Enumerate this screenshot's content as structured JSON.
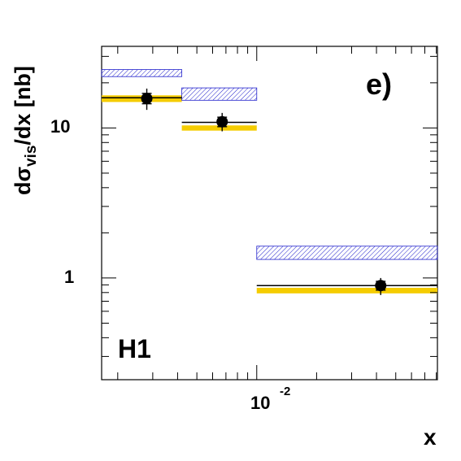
{
  "chart_data": {
    "type": "scatter",
    "title": "",
    "xlabel": "x",
    "ylabel": "dσ_vis/dx [nb]",
    "ylabel_parts": {
      "prefix": "dσ",
      "subscript": "vis",
      "suffix": "/dx [nb]"
    },
    "xscale": "log",
    "yscale": "log",
    "xlim": [
      0.00166,
      0.081
    ],
    "ylim": [
      0.21,
      35
    ],
    "x_tick_label": {
      "base": "10",
      "exponent": "-2",
      "value": 0.01
    },
    "y_tick_labels": [
      {
        "label": "1",
        "value": 1
      },
      {
        "label": "10",
        "value": 10
      }
    ],
    "grid": false,
    "annotations": [
      {
        "text": "e)",
        "position": "top-right"
      },
      {
        "text": "H1",
        "position": "bottom-left"
      }
    ],
    "bins": [
      {
        "x_low": 0.00166,
        "x_high": 0.0042,
        "data": {
          "x": 0.0028,
          "y": 15.7,
          "err_stat_low": 14.5,
          "err_stat_high": 17.0,
          "err_tot_low": 13.2,
          "err_tot_high": 18.3
        },
        "line_value": 15.9,
        "band_gold": [
          14.9,
          16.5
        ],
        "band_hatch": [
          22.0,
          24.5
        ]
      },
      {
        "x_low": 0.0042,
        "x_high": 0.01,
        "data": {
          "x": 0.0067,
          "y": 11.0,
          "err_stat_low": 10.2,
          "err_stat_high": 11.8,
          "err_tot_low": 9.5,
          "err_tot_high": 12.6
        },
        "line_value": 10.9,
        "band_gold": [
          9.6,
          10.4
        ],
        "band_hatch": [
          15.3,
          18.5
        ]
      },
      {
        "x_low": 0.01,
        "x_high": 0.081,
        "data": {
          "x": 0.042,
          "y": 0.89,
          "err_stat_low": 0.83,
          "err_stat_high": 0.95,
          "err_tot_low": 0.77,
          "err_tot_high": 1.0
        },
        "line_value": 0.89,
        "band_gold": [
          0.79,
          0.86
        ],
        "band_hatch": [
          1.33,
          1.63
        ]
      }
    ],
    "colors": {
      "data": "#000000",
      "gold_band": "#f5cc00",
      "hatch": "#2222cc",
      "line": "#000000"
    }
  }
}
